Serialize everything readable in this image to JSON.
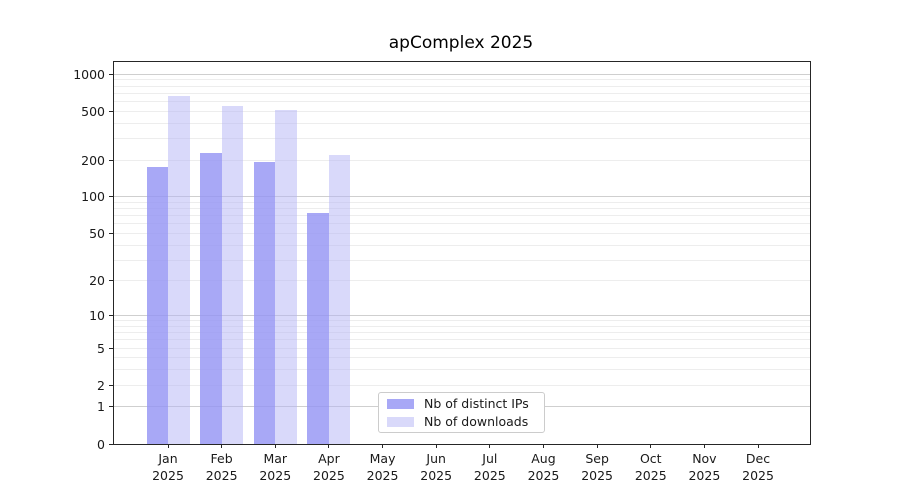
{
  "figure": {
    "background": "#ffffff",
    "text_color": "#000000"
  },
  "chart_data": {
    "type": "bar",
    "title": "apComplex 2025",
    "xlabel": "",
    "ylabel": "",
    "categories": [
      "Jan 2025",
      "Feb 2025",
      "Mar 2025",
      "Apr 2025",
      "May 2025",
      "Jun 2025",
      "Jul 2025",
      "Aug 2025",
      "Sep 2025",
      "Oct 2025",
      "Nov 2025",
      "Dec 2025"
    ],
    "series": [
      {
        "name": "Nb of distinct IPs",
        "color": "rgba(146,146,244,0.8)",
        "values": [
          175,
          228,
          192,
          74,
          0,
          0,
          0,
          0,
          0,
          0,
          0,
          0
        ]
      },
      {
        "name": "Nb of downloads",
        "color": "rgba(180,180,246,0.5)",
        "values": [
          660,
          550,
          510,
          222,
          0,
          0,
          0,
          0,
          0,
          0,
          0,
          0
        ]
      }
    ],
    "yscale": "log1p",
    "ylim": [
      0,
      1254
    ],
    "yticks": [
      0,
      1,
      2,
      5,
      10,
      20,
      50,
      100,
      200,
      500,
      1000
    ],
    "grid": {
      "on": true,
      "major_values": [
        1,
        10,
        100,
        1000
      ],
      "major_color": "#cfcfcf",
      "minor_color": "#ededed"
    },
    "legend": {
      "position": "lower center-left",
      "entries": [
        "Nb of distinct IPs",
        "Nb of downloads"
      ]
    }
  }
}
